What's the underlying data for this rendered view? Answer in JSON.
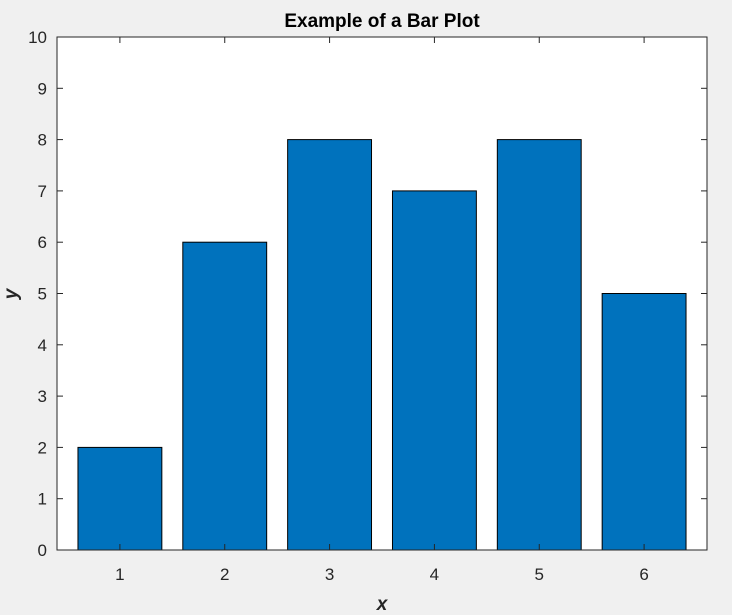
{
  "chart_data": {
    "type": "bar",
    "title": "Example of a Bar Plot",
    "xlabel": "x",
    "ylabel": "y",
    "categories": [
      "1",
      "2",
      "3",
      "4",
      "5",
      "6"
    ],
    "values": [
      2,
      6,
      8,
      7,
      8,
      5
    ],
    "xlim": [
      0.4,
      6.6
    ],
    "ylim": [
      0,
      10
    ],
    "yticks": [
      0,
      1,
      2,
      3,
      4,
      5,
      6,
      7,
      8,
      9,
      10
    ],
    "xticks": [
      1,
      2,
      3,
      4,
      5,
      6
    ],
    "grid": false,
    "legend": "none",
    "colors": {
      "bar_fill": "#0072BD",
      "bar_edge": "#000000",
      "axes_background": "#ffffff",
      "figure_background": "#f0f0f0",
      "axis_color": "#262626"
    }
  }
}
